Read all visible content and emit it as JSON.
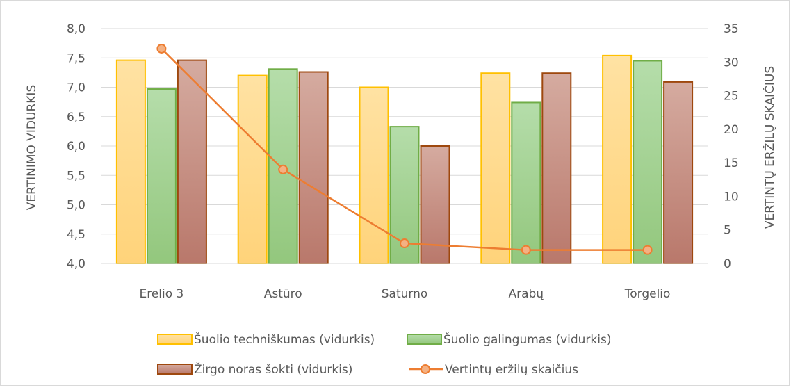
{
  "chart_data": {
    "type": "bar",
    "categories": [
      "Erelio 3",
      "Astūro",
      "Saturno",
      "Arabų",
      "Torgelio"
    ],
    "series": [
      {
        "name": "Šuolio techniškumas (vidurkis)",
        "axis": "left",
        "kind": "bar",
        "values": [
          7.46,
          7.2,
          7.0,
          7.24,
          7.54
        ],
        "color_top": "#ffe2a3",
        "color_bottom": "#ffd37a",
        "stroke": "#ffc000"
      },
      {
        "name": "Šuolio galingumas (vidurkis)",
        "axis": "left",
        "kind": "bar",
        "values": [
          6.97,
          7.31,
          6.33,
          6.74,
          7.45
        ],
        "color_top": "#b5ddaa",
        "color_bottom": "#93c77d",
        "stroke": "#70ad47"
      },
      {
        "name": "Žirgo noras šokti (vidurkis)",
        "axis": "left",
        "kind": "bar",
        "values": [
          7.46,
          7.26,
          6.0,
          7.24,
          7.09
        ],
        "color_top": "#d5aba0",
        "color_bottom": "#b9786b",
        "stroke": "#9e480e"
      },
      {
        "name": "Vertintų eržilų skaičius",
        "axis": "right",
        "kind": "line",
        "values": [
          32,
          14,
          3,
          2,
          2
        ],
        "color": "#ed7d31",
        "marker_fill": "#f4b183"
      }
    ],
    "y_left": {
      "label": "VERTINIMO VIDURKIS",
      "ylim": [
        4.0,
        8.0
      ],
      "ticks": [
        "4,0",
        "4,5",
        "5,0",
        "5,5",
        "6,0",
        "6,5",
        "7,0",
        "7,5",
        "8,0"
      ],
      "tick_values": [
        4.0,
        4.5,
        5.0,
        5.5,
        6.0,
        6.5,
        7.0,
        7.5,
        8.0
      ]
    },
    "y_right": {
      "label": "VERTINTŲ ERŽILŲ SKAIČIUS",
      "ylim": [
        0,
        35
      ],
      "ticks": [
        "0",
        "5",
        "10",
        "15",
        "20",
        "25",
        "30",
        "35"
      ],
      "tick_values": [
        0,
        5,
        10,
        15,
        20,
        25,
        30,
        35
      ]
    },
    "grid": true,
    "gridline_color": "#d9d9d9",
    "legend_position": "bottom"
  }
}
